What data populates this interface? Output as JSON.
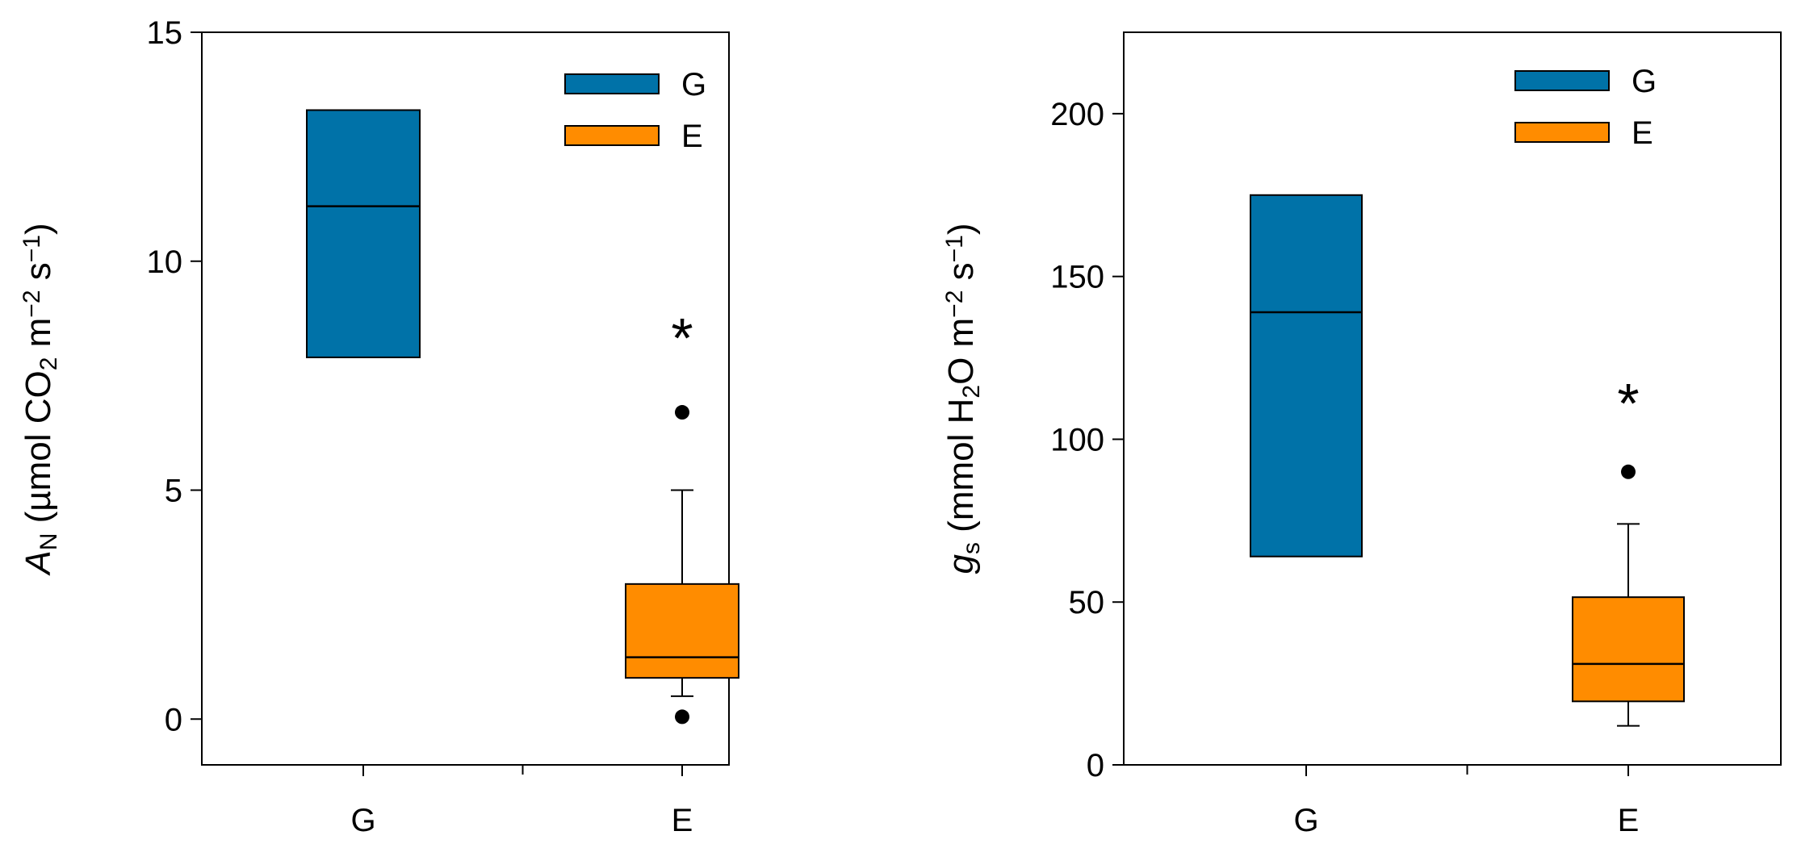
{
  "colors": {
    "G": "#0072a8",
    "E": "#ff8c00",
    "axis": "#000000"
  },
  "chart_data": [
    {
      "type": "box",
      "ylabel": {
        "main": "A",
        "sub": "N",
        "unit_pre": " (µmol CO",
        "unit_sub": "2",
        "unit_mid": " m",
        "unit_exp1": "−2",
        "unit_s": " s",
        "unit_exp2": "−1",
        "unit_post": ")"
      },
      "ylim": [
        -1,
        15
      ],
      "yticks": [
        0,
        5,
        10,
        15
      ],
      "categories": [
        "G",
        "E"
      ],
      "legend": [
        "G",
        "E"
      ],
      "annotation": "*",
      "annotation_y": 8.6,
      "boxes": [
        {
          "name": "G",
          "q1": 7.9,
          "median": 11.2,
          "q3": 13.3,
          "whisker_low": null,
          "whisker_high": null,
          "outliers": []
        },
        {
          "name": "E",
          "q1": 0.9,
          "median": 1.35,
          "q3": 2.95,
          "whisker_low": 0.5,
          "whisker_high": 5.0,
          "outliers": [
            0.05,
            6.7
          ]
        }
      ]
    },
    {
      "type": "box",
      "ylabel": {
        "main": "g",
        "sub": "s",
        "unit_pre": " (mmol H",
        "unit_sub": "2",
        "unit_mid": "O m",
        "unit_exp1": "−2",
        "unit_s": " s",
        "unit_exp2": "−1",
        "unit_post": ")"
      },
      "ylim": [
        0,
        225
      ],
      "yticks": [
        0,
        50,
        100,
        150,
        200
      ],
      "categories": [
        "G",
        "E"
      ],
      "legend": [
        "G",
        "E"
      ],
      "annotation": "*",
      "annotation_y": 115,
      "boxes": [
        {
          "name": "G",
          "q1": 64,
          "median": 139,
          "q3": 175,
          "whisker_low": null,
          "whisker_high": null,
          "outliers": []
        },
        {
          "name": "E",
          "q1": 19.5,
          "median": 31,
          "q3": 51.5,
          "whisker_low": 12,
          "whisker_high": 74,
          "outliers": [
            90
          ]
        }
      ]
    }
  ]
}
